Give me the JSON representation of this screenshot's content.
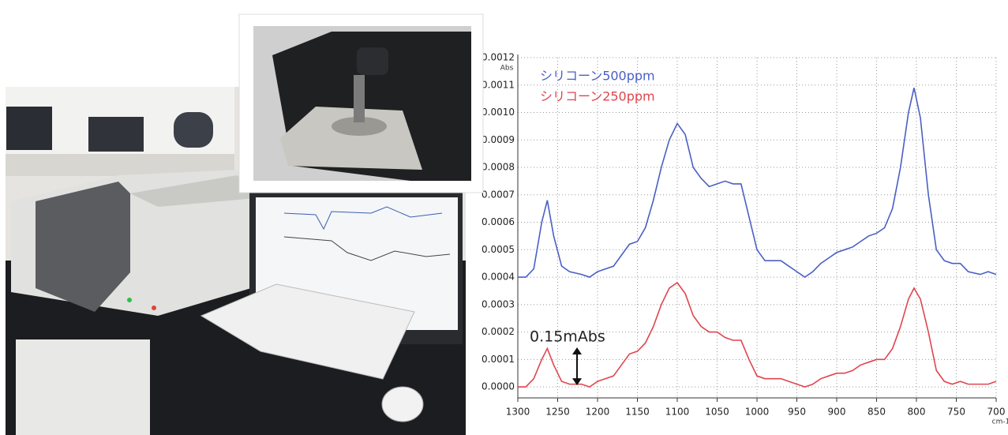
{
  "chart_data": {
    "type": "line",
    "ylabel": "Abs",
    "xlabel": "cm-1",
    "annotation": "0.15mAbs",
    "x": [
      1300,
      1290,
      1280,
      1270,
      1263,
      1255,
      1245,
      1235,
      1220,
      1210,
      1200,
      1190,
      1180,
      1170,
      1160,
      1150,
      1140,
      1130,
      1120,
      1110,
      1100,
      1090,
      1080,
      1070,
      1060,
      1050,
      1040,
      1030,
      1020,
      1010,
      1000,
      990,
      980,
      970,
      960,
      950,
      940,
      930,
      920,
      910,
      900,
      890,
      880,
      870,
      860,
      850,
      840,
      830,
      820,
      810,
      803,
      795,
      785,
      775,
      765,
      755,
      745,
      735,
      720,
      710,
      700
    ],
    "series": [
      {
        "name": "シリコーン500ppm",
        "color": "#4a5fc4",
        "values": [
          0.0004,
          0.0004,
          0.00043,
          0.0006,
          0.00068,
          0.00055,
          0.00044,
          0.00042,
          0.00041,
          0.0004,
          0.00042,
          0.00043,
          0.00044,
          0.00048,
          0.00052,
          0.00053,
          0.00058,
          0.00068,
          0.0008,
          0.0009,
          0.00096,
          0.00092,
          0.0008,
          0.00076,
          0.00073,
          0.00074,
          0.00075,
          0.00074,
          0.00074,
          0.00062,
          0.0005,
          0.00046,
          0.00046,
          0.00046,
          0.00044,
          0.00042,
          0.0004,
          0.00042,
          0.00045,
          0.00047,
          0.00049,
          0.0005,
          0.00051,
          0.00053,
          0.00055,
          0.00056,
          0.00058,
          0.00065,
          0.0008,
          0.001,
          0.00109,
          0.00098,
          0.0007,
          0.0005,
          0.00046,
          0.00045,
          0.00045,
          0.00042,
          0.00041,
          0.00042,
          0.00041
        ]
      },
      {
        "name": "シリコーン250ppm",
        "color": "#e0454f",
        "values": [
          0,
          0,
          3e-05,
          0.0001,
          0.00014,
          8e-05,
          2e-05,
          1e-05,
          1e-05,
          0,
          2e-05,
          3e-05,
          4e-05,
          8e-05,
          0.00012,
          0.00013,
          0.00016,
          0.00022,
          0.0003,
          0.00036,
          0.00038,
          0.00034,
          0.00026,
          0.00022,
          0.0002,
          0.0002,
          0.00018,
          0.00017,
          0.00017,
          0.0001,
          4e-05,
          3e-05,
          3e-05,
          3e-05,
          2e-05,
          1e-05,
          0,
          1e-05,
          3e-05,
          4e-05,
          5e-05,
          5e-05,
          6e-05,
          8e-05,
          9e-05,
          0.0001,
          0.0001,
          0.00014,
          0.00022,
          0.00032,
          0.00036,
          0.00032,
          0.0002,
          6e-05,
          2e-05,
          1e-05,
          2e-05,
          1e-05,
          1e-05,
          1e-05,
          2e-05
        ]
      }
    ],
    "xlim": [
      1300,
      700
    ],
    "xticks": [
      1300,
      1250,
      1200,
      1150,
      1100,
      1050,
      1000,
      950,
      900,
      850,
      800,
      750,
      700
    ],
    "ylim": [
      -4e-05,
      0.0012
    ],
    "yticks": [
      {
        "value": 0,
        "label": "0.0000"
      },
      {
        "value": 0.0001,
        "label": "0.0001"
      },
      {
        "value": 0.0002,
        "label": "0.0002"
      },
      {
        "value": 0.0003,
        "label": "0.0003"
      },
      {
        "value": 0.0004,
        "label": "0.0004"
      },
      {
        "value": 0.0005,
        "label": "0.0005"
      },
      {
        "value": 0.0006,
        "label": "0.0006"
      },
      {
        "value": 0.0007,
        "label": "0.0007"
      },
      {
        "value": 0.0008,
        "label": "0.0008"
      },
      {
        "value": 0.0009,
        "label": "0.0009"
      },
      {
        "value": 0.001,
        "label": "0.0010"
      },
      {
        "value": 0.0011,
        "label": "0.0011"
      },
      {
        "value": 0.0012,
        "label": "0.0012"
      }
    ],
    "grid": true
  }
}
